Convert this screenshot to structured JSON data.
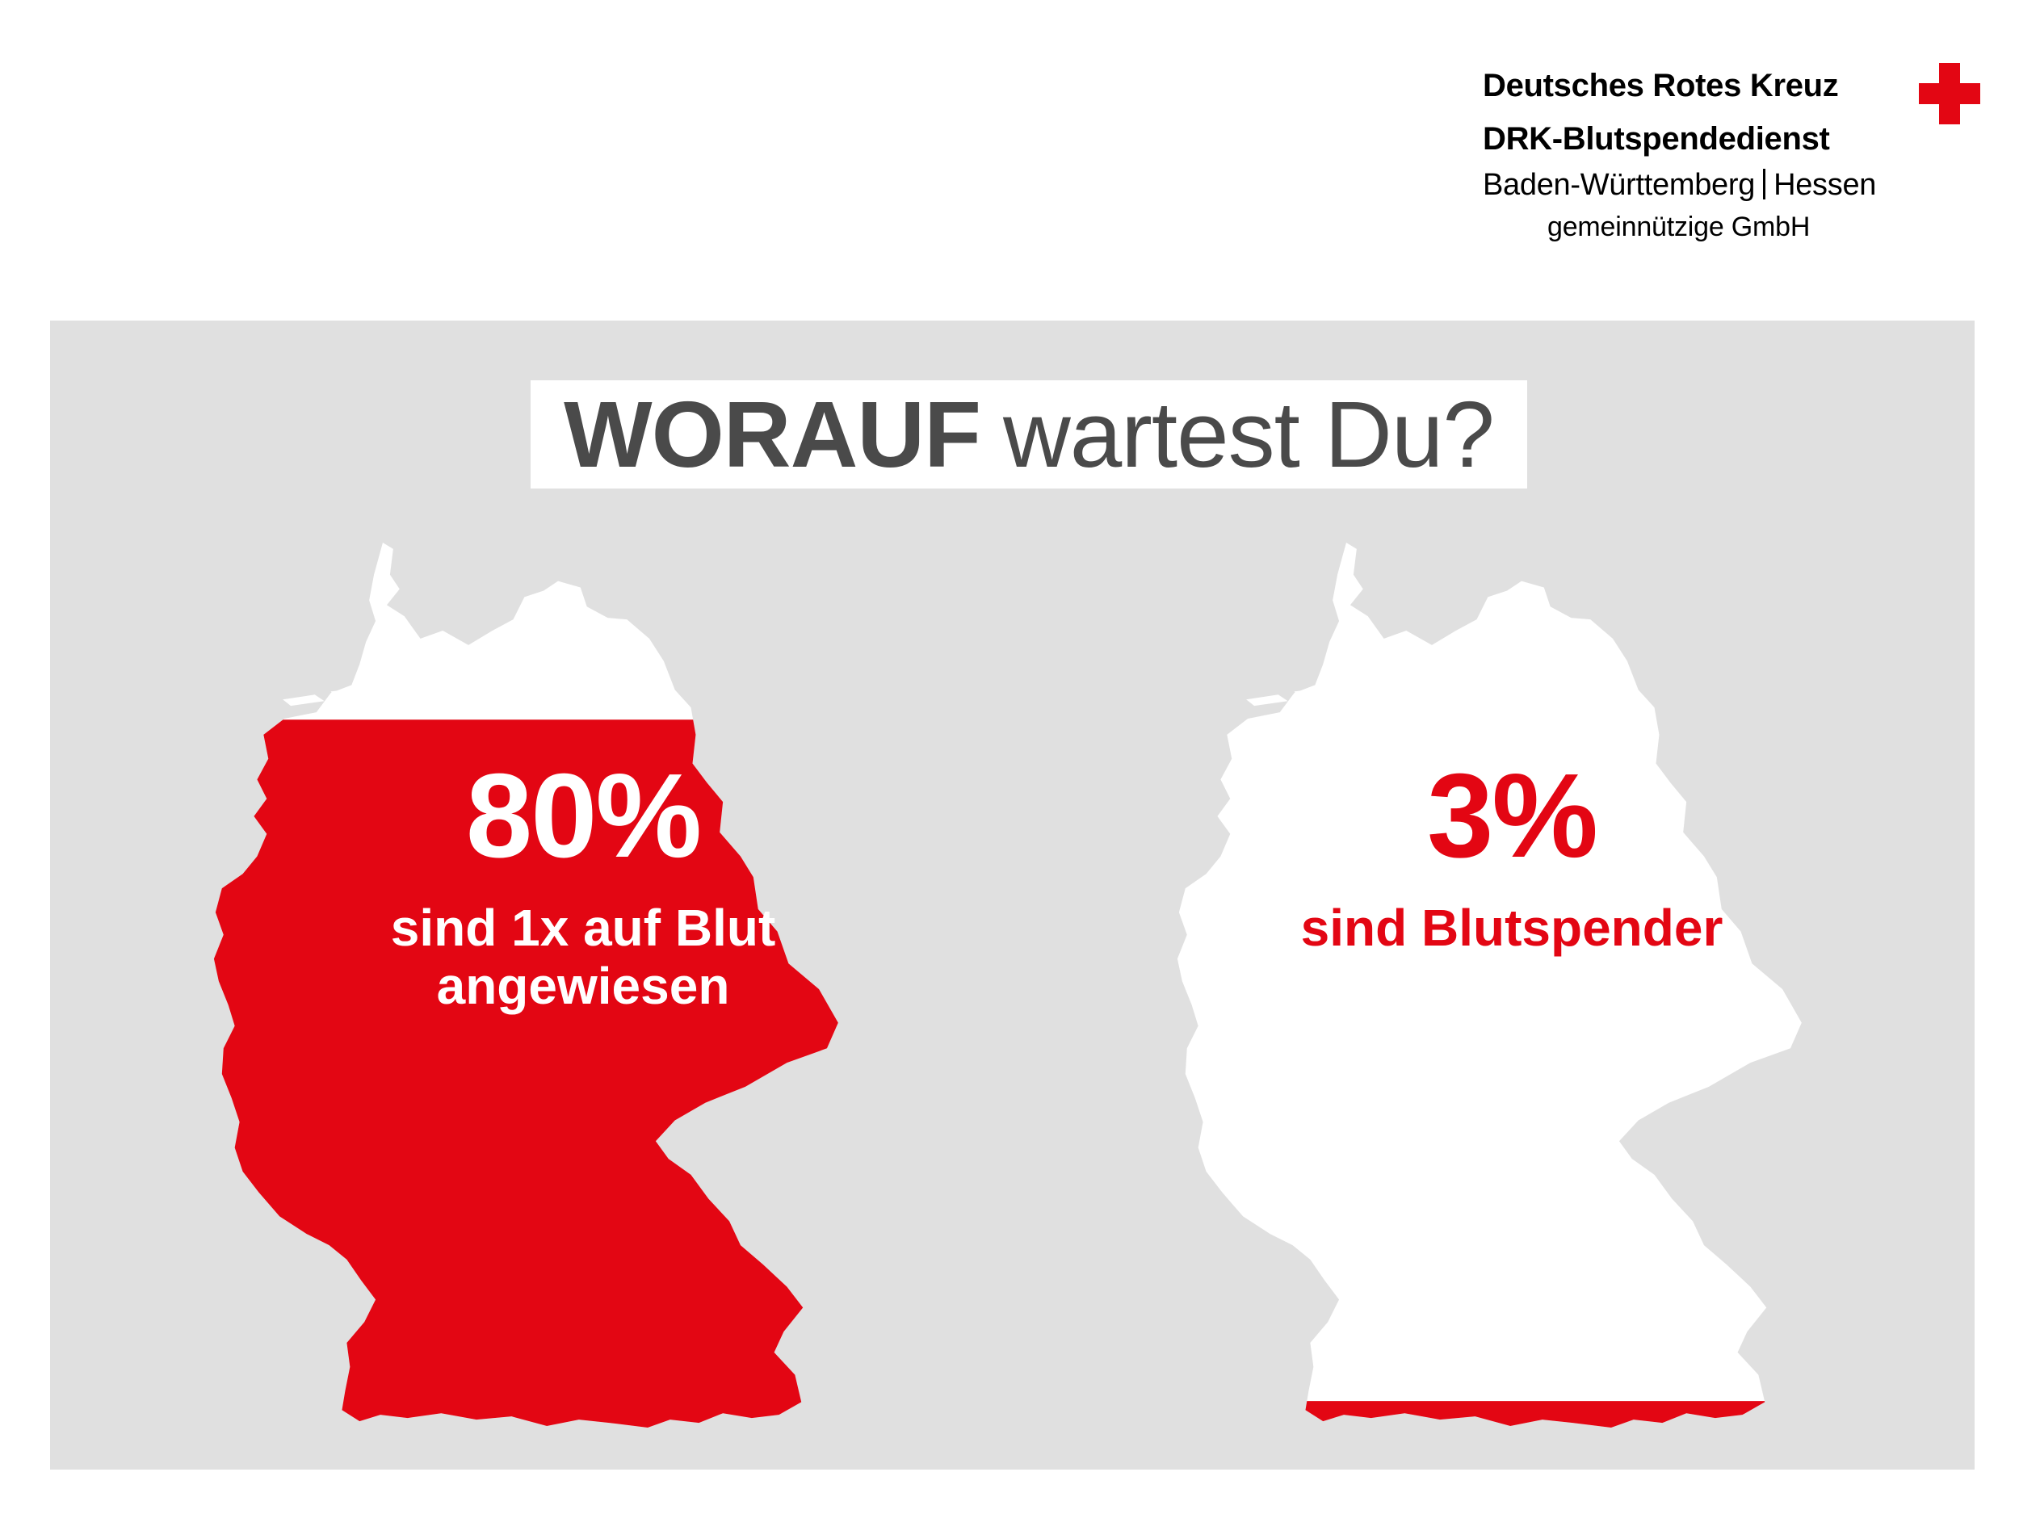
{
  "logo": {
    "organization": "Deutsches Rotes Kreuz",
    "service": "DRK-Blutspendedienst",
    "region_left": "Baden-Württemberg",
    "region_right": "Hessen",
    "legal_form": "gemeinnützige GmbH",
    "cross_icon": "red-cross-icon"
  },
  "headline": {
    "strong": "WORAUF",
    "light": "wartest Du?"
  },
  "stats": [
    {
      "value": "80%",
      "caption_line1": "sind 1x auf Blut",
      "caption_line2": "angewiesen",
      "fill_fraction": 0.8
    },
    {
      "value": "3%",
      "caption_line1": "sind Blutspender",
      "fill_fraction": 0.03
    }
  ],
  "colors": {
    "brand_red": "#e30613",
    "panel_grey": "#e0e0e0",
    "headline_grey": "#4a4a4a",
    "map_white": "#ffffff"
  }
}
